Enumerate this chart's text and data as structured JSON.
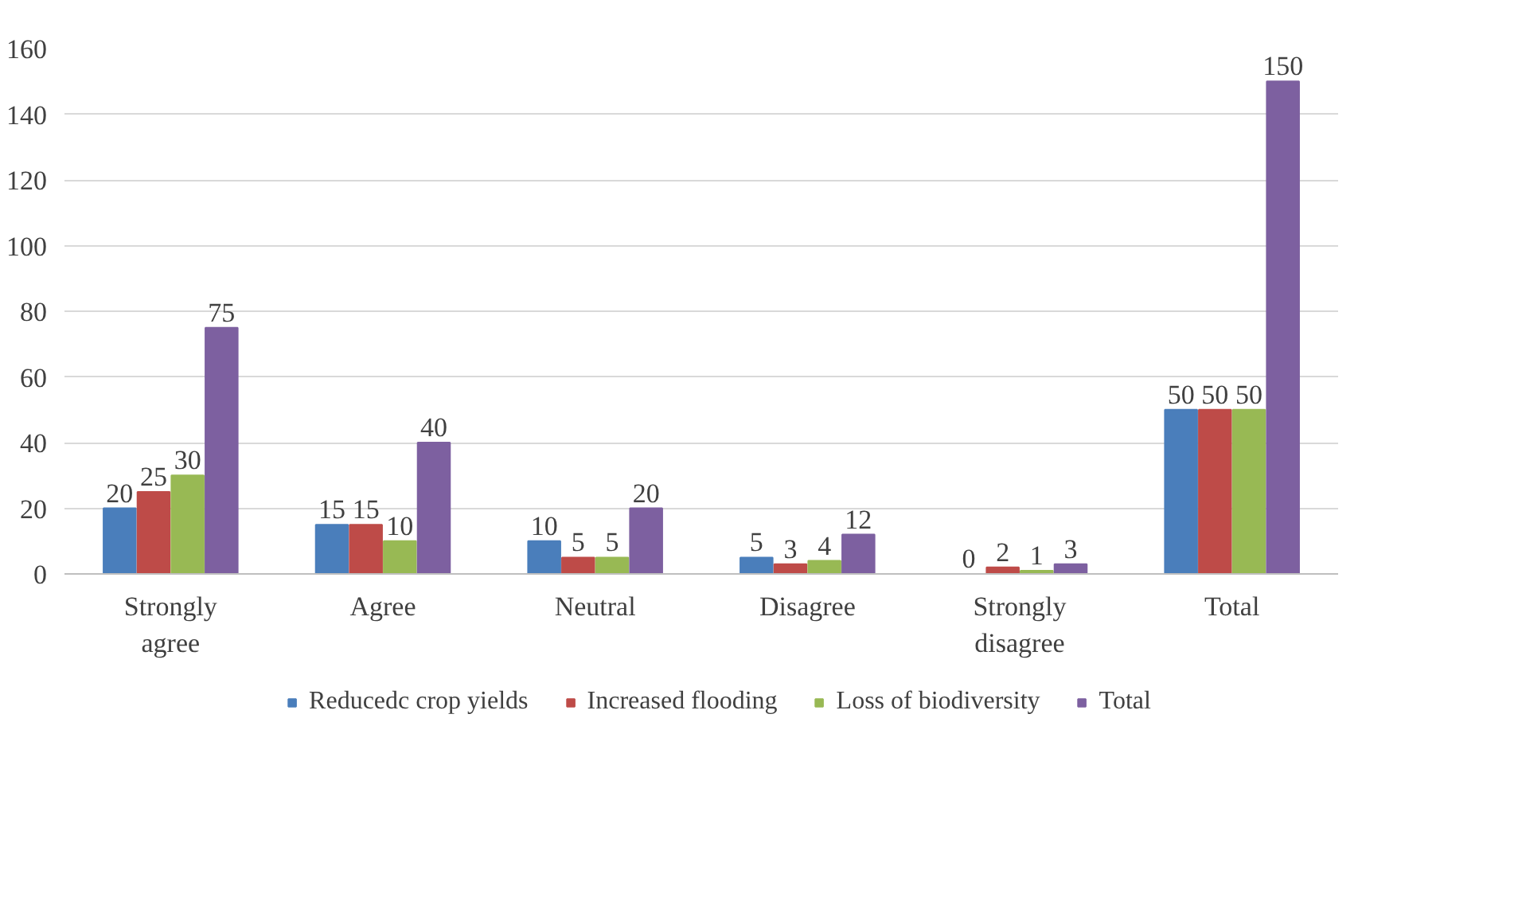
{
  "chart_data": {
    "type": "bar",
    "categories": [
      "Strongly agree",
      "Agree",
      "Neutral",
      "Disagree",
      "Strongly disagree",
      "Total"
    ],
    "series": [
      {
        "name": "Reducedc crop yields",
        "color": "#4a7ebb",
        "values": [
          20,
          15,
          10,
          5,
          0,
          50
        ]
      },
      {
        "name": "Increased flooding",
        "color": "#be4b48",
        "values": [
          25,
          15,
          5,
          3,
          2,
          50
        ]
      },
      {
        "name": "Loss of biodiversity",
        "color": "#98b954",
        "values": [
          30,
          10,
          5,
          4,
          1,
          50
        ]
      },
      {
        "name": "Total",
        "color": "#7d60a0",
        "values": [
          75,
          40,
          20,
          12,
          3,
          150
        ]
      }
    ],
    "ylim": [
      0,
      160
    ],
    "yticks": [
      0,
      20,
      40,
      60,
      80,
      100,
      120,
      140,
      160
    ],
    "grid": "y",
    "legend": "bottom",
    "data_labels": true
  }
}
